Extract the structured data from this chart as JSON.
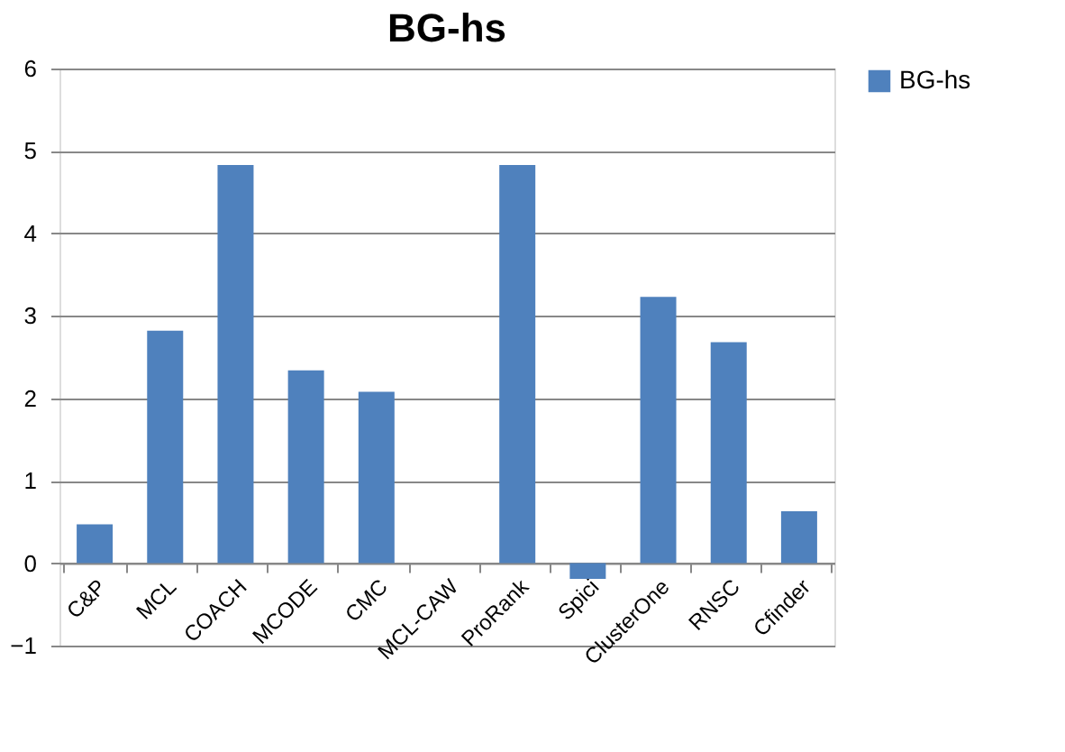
{
  "chart_data": {
    "type": "bar",
    "title": "BG-hs",
    "categories": [
      "C&P",
      "MCL",
      "COACH",
      "MCODE",
      "CMC",
      "MCL-CAW",
      "ProRank",
      "Spici",
      "ClusterOne",
      "RNSC",
      "Cfinder"
    ],
    "series": [
      {
        "name": "BG-hs",
        "color": "#4f81bd",
        "values": [
          0.47,
          2.82,
          4.83,
          2.34,
          2.08,
          0,
          4.83,
          -0.19,
          3.23,
          2.68,
          0.63
        ]
      }
    ],
    "ylim": [
      -1,
      6
    ],
    "yticks": [
      -1,
      0,
      1,
      2,
      3,
      4,
      5,
      6
    ],
    "grid": "y",
    "legend": "right"
  }
}
